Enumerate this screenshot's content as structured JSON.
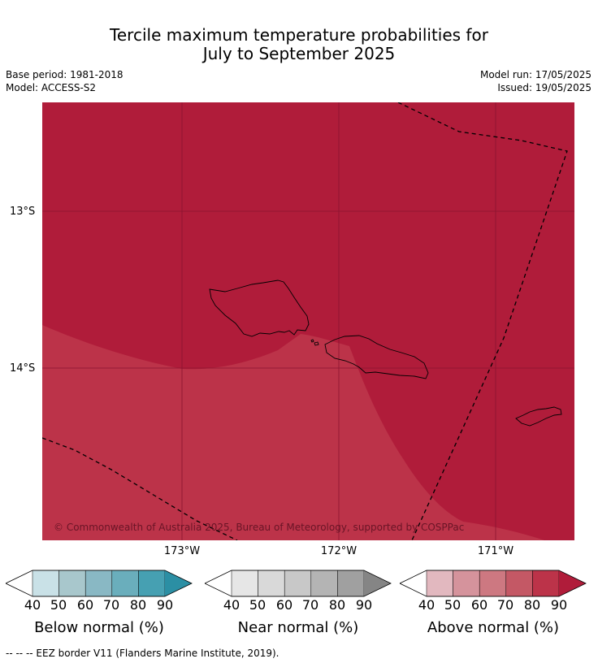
{
  "header": {
    "title_line1": "Tercile maximum temperature probabilities for",
    "title_line2": "July to September 2025",
    "base_period": "Base period: 1981-2018",
    "model": "Model: ACCESS-S2",
    "model_run": "Model run: 17/05/2025",
    "issued": "Issued: 19/05/2025"
  },
  "map": {
    "lat_labels": [
      "13°S",
      "14°S"
    ],
    "lon_labels": [
      "173°W",
      "172°W",
      "171°W"
    ],
    "copyright": "© Commonwealth of Australia 2025, Bureau of Meteorology, supported by COSPPac",
    "colors": {
      "above_80_90": "#b01c3a",
      "above_70_80": "#bc3349",
      "border": "#000000",
      "grid": "#8a1530"
    }
  },
  "legend": {
    "below": {
      "title": "Below normal (%)",
      "ticks": [
        "40",
        "50",
        "60",
        "70",
        "80",
        "90"
      ],
      "colors": [
        "#ffffff",
        "#c9e1e7",
        "#a8c7cc",
        "#89b8c4",
        "#6aaebc",
        "#46a0b2",
        "#2b8fa4"
      ]
    },
    "near": {
      "title": "Near normal (%)",
      "ticks": [
        "40",
        "50",
        "60",
        "70",
        "80",
        "90"
      ],
      "colors": [
        "#ffffff",
        "#e6e6e6",
        "#d9d9d9",
        "#c8c8c8",
        "#b4b4b4",
        "#a0a0a0",
        "#858585"
      ]
    },
    "above": {
      "title": "Above normal (%)",
      "ticks": [
        "40",
        "50",
        "60",
        "70",
        "80",
        "90"
      ],
      "colors": [
        "#ffffff",
        "#e2b8bf",
        "#d5939c",
        "#cd7881",
        "#c45865",
        "#bc3349",
        "#b01c3a"
      ]
    }
  },
  "footer": "--  --  -- EEZ border V11 (Flanders Marine Institute, 2019)."
}
